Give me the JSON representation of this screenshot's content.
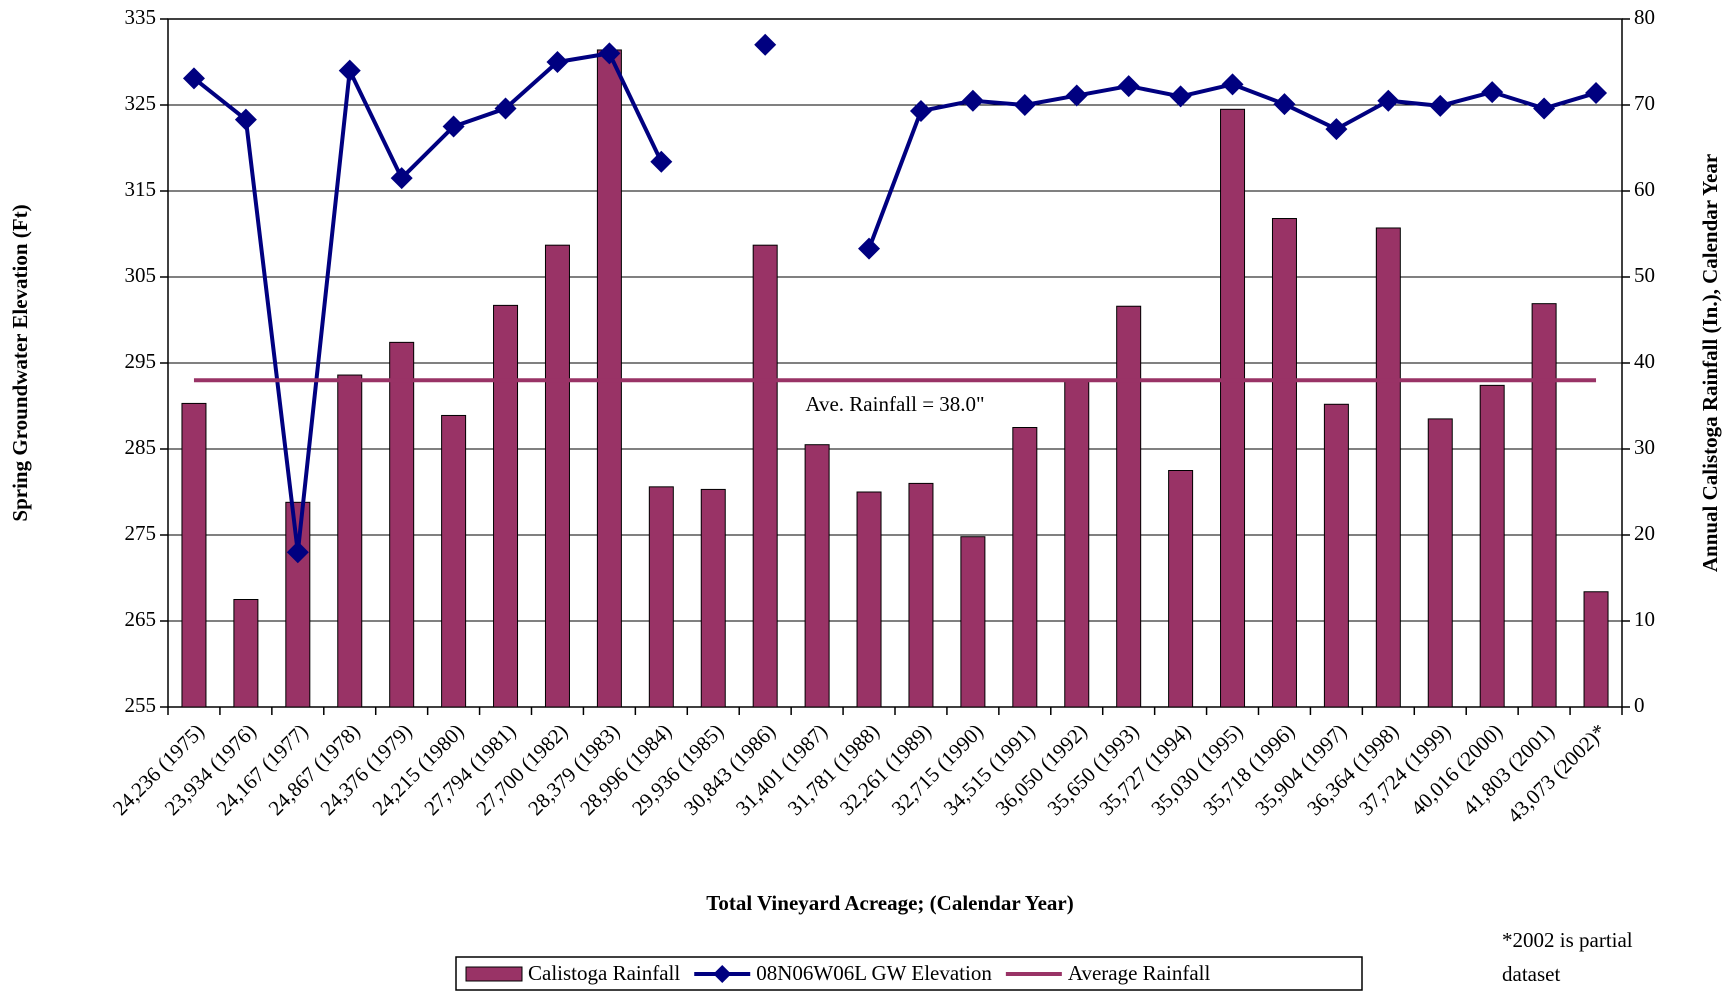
{
  "chart_data": {
    "type": "combo",
    "xlabel": "Total Vineyard Acreage; (Calendar Year)",
    "ylabel": "Spring Groundwater Elevation (Ft)",
    "y2label": "Annual Calistoga Rainfall (In.), Calendar Year",
    "categories": [
      "24,236 (1975)",
      "23,934 (1976)",
      "24,167 (1977)",
      "24,867 (1978)",
      "24,376 (1979)",
      "24,215 (1980)",
      "27,794 (1981)",
      "27,700 (1982)",
      "28,379 (1983)",
      "28,996 (1984)",
      "29,936 (1985)",
      "30,843 (1986)",
      "31,401 (1987)",
      "31,781 (1988)",
      "32,261 (1989)",
      "32,715 (1990)",
      "34,515 (1991)",
      "36,050 (1992)",
      "35,650 (1993)",
      "35,727 (1994)",
      "35,030 (1995)",
      "35,718 (1996)",
      "35,904 (1997)",
      "36,364 (1998)",
      "37,724 (1999)",
      "40,016 (2000)",
      "41,803 (2001)",
      "43,073 (2002)*"
    ],
    "series": [
      {
        "name": "Calistoga Rainfall",
        "type": "bar",
        "axis": "y2",
        "color": "#993366",
        "values": [
          35.3,
          12.5,
          23.8,
          38.6,
          42.4,
          33.9,
          46.7,
          53.7,
          76.4,
          25.6,
          25.3,
          53.7,
          30.5,
          25.0,
          26.0,
          19.8,
          32.5,
          37.9,
          46.6,
          27.5,
          69.5,
          56.8,
          35.2,
          55.7,
          33.5,
          37.4,
          46.9,
          13.4
        ]
      },
      {
        "name": "08N06W06L GW Elevation",
        "type": "line",
        "color": "#000080",
        "values": [
          328.1,
          323.3,
          273,
          329,
          316.5,
          322.5,
          324.6,
          330,
          331,
          318.4,
          null,
          332,
          null,
          308.3,
          324.3,
          325.5,
          325,
          326.1,
          327.2,
          326,
          327.4,
          325.1,
          322.2,
          325.5,
          324.9,
          326.5,
          324.6,
          326.4
        ]
      },
      {
        "name": "Average Rainfall",
        "type": "hline",
        "axis": "y2",
        "color": "#993366",
        "value": 38.0
      }
    ],
    "annotation": "Ave. Rainfall = 38.0\"",
    "footnote": [
      "*2002 is partial",
      "dataset"
    ],
    "ylim": [
      255,
      335
    ],
    "yticks": [
      255,
      265,
      275,
      285,
      295,
      305,
      315,
      325,
      335
    ],
    "y2lim": [
      0,
      80
    ],
    "y2ticks": [
      0,
      10,
      20,
      30,
      40,
      50,
      60,
      70,
      80
    ],
    "grid": true,
    "legend": "bottom"
  }
}
